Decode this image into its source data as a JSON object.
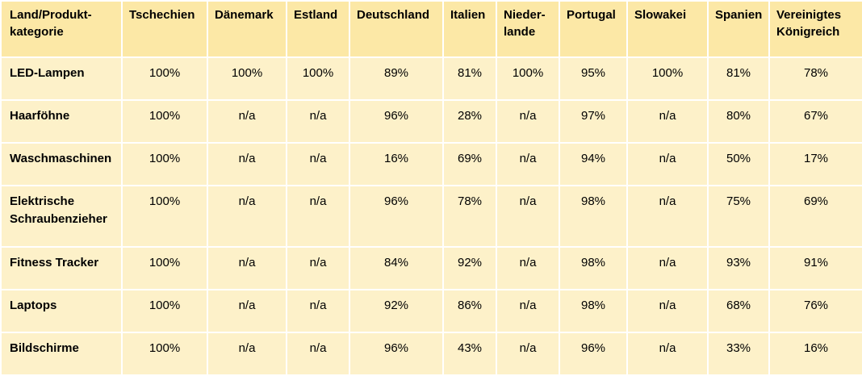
{
  "table": {
    "headers": [
      [
        "Land/Produkt-",
        "kategorie"
      ],
      [
        "Tschechien"
      ],
      [
        "Dänemark"
      ],
      [
        "Estland"
      ],
      [
        "Deutschland"
      ],
      [
        "Italien"
      ],
      [
        "Nieder-",
        "lande"
      ],
      [
        "Portugal"
      ],
      [
        "Slowakei"
      ],
      [
        "Spanien"
      ],
      [
        "Vereinigtes",
        "Königreich"
      ]
    ],
    "rows": [
      {
        "label": [
          "LED-Lampen"
        ],
        "values": [
          "100%",
          "100%",
          "100%",
          "89%",
          "81%",
          "100%",
          "95%",
          "100%",
          "81%",
          "78%"
        ]
      },
      {
        "label": [
          "Haarföhne"
        ],
        "values": [
          "100%",
          "n/a",
          "n/a",
          "96%",
          "28%",
          "n/a",
          "97%",
          "n/a",
          "80%",
          "67%"
        ]
      },
      {
        "label": [
          "Waschmaschinen"
        ],
        "values": [
          "100%",
          "n/a",
          "n/a",
          "16%",
          "69%",
          "n/a",
          "94%",
          "n/a",
          "50%",
          "17%"
        ]
      },
      {
        "label": [
          "Elektrische",
          "Schraubenzieher"
        ],
        "values": [
          "100%",
          "n/a",
          "n/a",
          "96%",
          "78%",
          "n/a",
          "98%",
          "n/a",
          "75%",
          "69%"
        ]
      },
      {
        "label": [
          "Fitness Tracker"
        ],
        "values": [
          "100%",
          "n/a",
          "n/a",
          "84%",
          "92%",
          "n/a",
          "98%",
          "n/a",
          "93%",
          "91%"
        ]
      },
      {
        "label": [
          "Laptops"
        ],
        "values": [
          "100%",
          "n/a",
          "n/a",
          "92%",
          "86%",
          "n/a",
          "98%",
          "n/a",
          "68%",
          "76%"
        ]
      },
      {
        "label": [
          "Bildschirme"
        ],
        "values": [
          "100%",
          "n/a",
          "n/a",
          "96%",
          "43%",
          "n/a",
          "96%",
          "n/a",
          "33%",
          "16%"
        ]
      }
    ]
  },
  "colors": {
    "header_background": "#fce8a6",
    "cell_background": "#fdf1c9"
  }
}
